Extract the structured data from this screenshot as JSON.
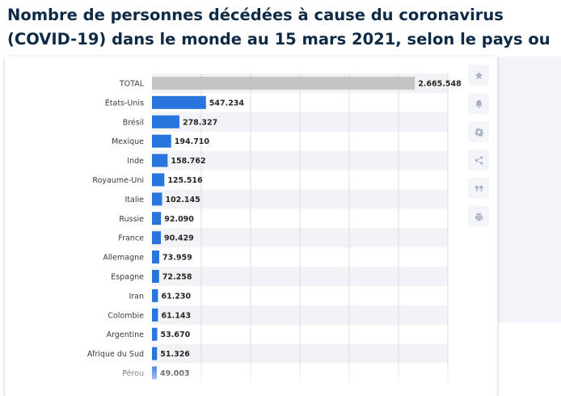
{
  "headline": "Nombre de personnes décédées à cause du coronavirus (COVID-19) dans le monde au 15 mars 2021, selon le pays ou territoire",
  "toolbar": {
    "icons": [
      "star-icon",
      "bell-icon",
      "gear-icon",
      "share-icon",
      "quote-icon",
      "print-icon"
    ]
  },
  "colors": {
    "total_bar": "#c4c4c4",
    "country_bar": "#2876dd",
    "label": "#3b3b3b",
    "value_label": "#262626",
    "stripe": "#f1f3f6",
    "gridline": "#d9dde3"
  },
  "chart_data": {
    "type": "bar",
    "orientation": "horizontal",
    "categories": [
      "TOTAL",
      "États-Unis",
      "Brésil",
      "Mexique",
      "Inde",
      "Royaume-Uni",
      "Italie",
      "Russie",
      "France",
      "Allemagne",
      "Espagne",
      "Iran",
      "Colombie",
      "Argentine",
      "Afrique du Sud",
      "Pérou"
    ],
    "values": [
      2665548,
      547234,
      278327,
      194710,
      158762,
      125516,
      102145,
      92090,
      90429,
      73959,
      72258,
      61230,
      61143,
      53670,
      51326,
      49003
    ],
    "value_labels": [
      "2.665.548",
      "547.234",
      "278.327",
      "194.710",
      "158.762",
      "125.516",
      "102.145",
      "92.090",
      "90.429",
      "73.959",
      "72.258",
      "61.230",
      "61.143",
      "53.670",
      "51.326",
      "49.003"
    ],
    "xlim": [
      0,
      3000000
    ],
    "grid": true,
    "title": "",
    "xlabel": "",
    "ylabel": ""
  }
}
